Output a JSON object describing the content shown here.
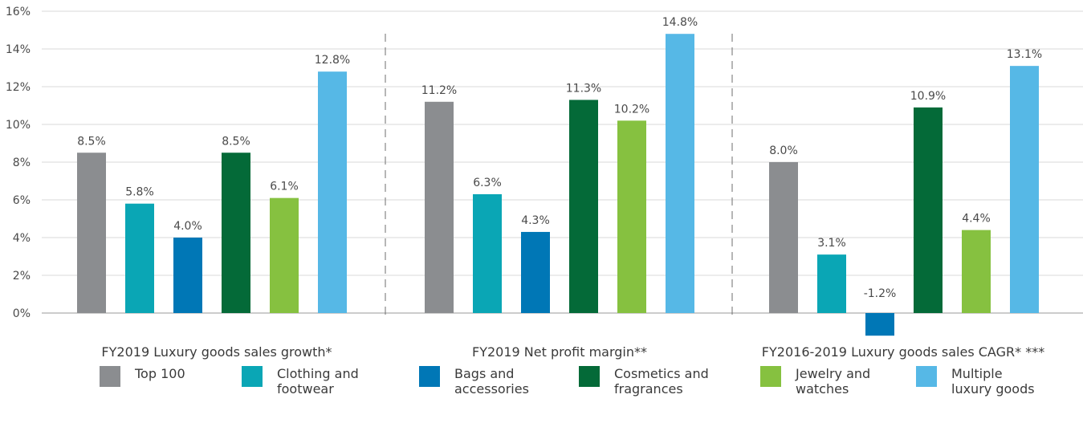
{
  "chart_data": {
    "type": "bar",
    "ylim": [
      -2,
      16
    ],
    "yticks": [
      0,
      2,
      4,
      6,
      8,
      10,
      12,
      14,
      16
    ],
    "ytick_labels": [
      "0%",
      "2%",
      "4%",
      "6%",
      "8%",
      "10%",
      "12%",
      "14%",
      "16%"
    ],
    "grid": "horizontal",
    "groups": [
      {
        "label": "FY2019 Luxury goods sales growth*",
        "values": [
          8.5,
          5.8,
          4.0,
          8.5,
          6.1,
          12.8
        ],
        "value_labels": [
          "8.5%",
          "5.8%",
          "4.0%",
          "8.5%",
          "6.1%",
          "12.8%"
        ]
      },
      {
        "label": "FY2019 Net profit margin**",
        "values": [
          11.2,
          6.3,
          4.3,
          11.3,
          10.2,
          14.8
        ],
        "value_labels": [
          "11.2%",
          "6.3%",
          "4.3%",
          "11.3%",
          "10.2%",
          "14.8%"
        ]
      },
      {
        "label": "FY2016-2019 Luxury goods sales CAGR* ***",
        "values": [
          8.0,
          3.1,
          -1.2,
          10.9,
          4.4,
          13.1
        ],
        "value_labels": [
          "8.0%",
          "3.1%",
          "-1.2%",
          "10.9%",
          "4.4%",
          "13.1%"
        ]
      }
    ],
    "series": [
      {
        "name": "Top 100",
        "color": "#8b8d90"
      },
      {
        "name": "Clothing and footwear",
        "color": "#0aa6b5"
      },
      {
        "name": "Bags and accessories",
        "color": "#0077b6"
      },
      {
        "name": "Cosmetics and fragrances",
        "color": "#046a38"
      },
      {
        "name": "Jewelry and watches",
        "color": "#86c140"
      },
      {
        "name": "Multiple luxury goods",
        "color": "#56b8e6"
      }
    ],
    "legend_position": "bottom"
  },
  "legend": {
    "items": [
      {
        "line1": "Top 100",
        "line2": ""
      },
      {
        "line1": "Clothing and",
        "line2": "footwear"
      },
      {
        "line1": "Bags and",
        "line2": "accessories"
      },
      {
        "line1": "Cosmetics and",
        "line2": "fragrances"
      },
      {
        "line1": "Jewelry and",
        "line2": "watches"
      },
      {
        "line1": "Multiple",
        "line2": "luxury goods"
      }
    ]
  }
}
